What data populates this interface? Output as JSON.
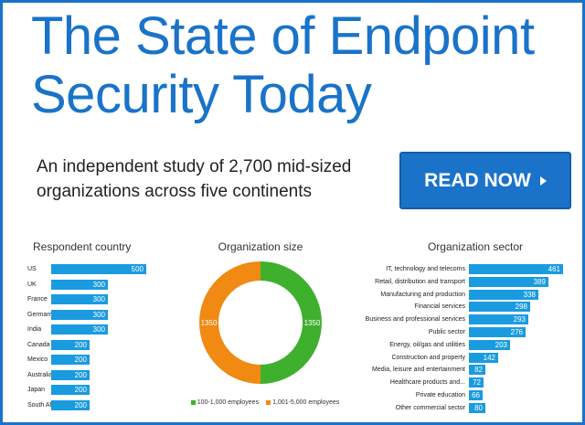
{
  "title": "The State of Endpoint\nSecurity Today",
  "subtitle": "An independent study of 2,700 mid-sized organizations across five continents",
  "cta": {
    "label": "READ NOW"
  },
  "colors": {
    "brand": "#1a73c9",
    "bar": "#1a9be0",
    "green": "#3fb02e",
    "orange": "#f08a12"
  },
  "country_chart": {
    "title": "Respondent country",
    "type": "bar",
    "categories": [
      "US",
      "UK",
      "France",
      "Germany",
      "India",
      "Canada",
      "Mexico",
      "Australia",
      "Japan",
      "South Africa"
    ],
    "values": [
      500,
      300,
      300,
      300,
      300,
      200,
      200,
      200,
      200,
      200
    ],
    "xlim": [
      0,
      500
    ]
  },
  "size_chart": {
    "title": "Organization size",
    "type": "pie",
    "slices": [
      {
        "name": "100-1,000 employees",
        "value": 1350,
        "color": "#3fb02e"
      },
      {
        "name": "1,001-5,000 employees",
        "value": 1350,
        "color": "#f08a12"
      }
    ]
  },
  "sector_chart": {
    "title": "Organization sector",
    "type": "bar",
    "categories": [
      "IT, technology and telecoms",
      "Retail, distribution and transport",
      "Manufacturing and production",
      "Financial services",
      "Business and professional services",
      "Public sector",
      "Energy, oil/gas and utilities",
      "Construction and property",
      "Media, leisure and entertainment",
      "Healthcare products and...",
      "Private education",
      "Other commercial sector"
    ],
    "values": [
      461,
      389,
      338,
      298,
      293,
      276,
      203,
      142,
      82,
      72,
      66,
      80
    ],
    "xlim": [
      0,
      461
    ]
  },
  "chart_data": [
    {
      "type": "bar",
      "title": "Respondent country",
      "categories": [
        "US",
        "UK",
        "France",
        "Germany",
        "India",
        "Canada",
        "Mexico",
        "Australia",
        "Japan",
        "South Africa"
      ],
      "values": [
        500,
        300,
        300,
        300,
        300,
        200,
        200,
        200,
        200,
        200
      ]
    },
    {
      "type": "pie",
      "title": "Organization size",
      "categories": [
        "100-1,000 employees",
        "1,001-5,000 employees"
      ],
      "values": [
        1350,
        1350
      ]
    },
    {
      "type": "bar",
      "title": "Organization sector",
      "categories": [
        "IT, technology and telecoms",
        "Retail, distribution and transport",
        "Manufacturing and production",
        "Financial services",
        "Business and professional services",
        "Public sector",
        "Energy, oil/gas and utilities",
        "Construction and property",
        "Media, leisure and entertainment",
        "Healthcare products and...",
        "Private education",
        "Other commercial sector"
      ],
      "values": [
        461,
        389,
        338,
        298,
        293,
        276,
        203,
        142,
        82,
        72,
        66,
        80
      ]
    }
  ]
}
